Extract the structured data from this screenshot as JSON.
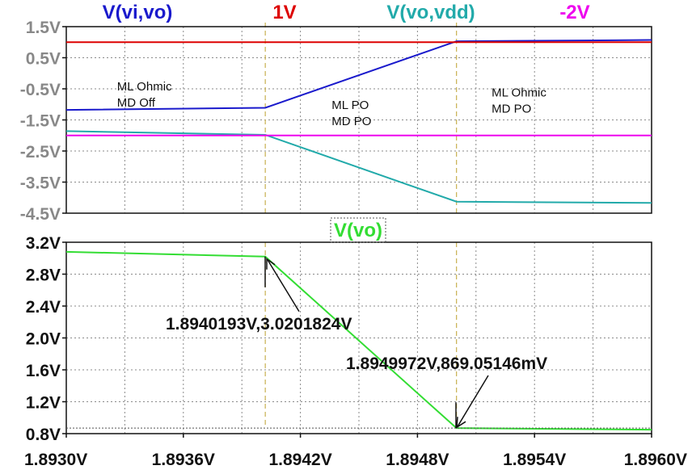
{
  "chart_data": [
    {
      "type": "line",
      "pane": "top",
      "title": "",
      "legend": [
        {
          "label": "V(vi,vo)",
          "color": "#1a1acc"
        },
        {
          "label": "1V",
          "color": "#dd0000"
        },
        {
          "label": "V(vo,vdd)",
          "color": "#22aaaa"
        },
        {
          "label": "-2V",
          "color": "#ee00ee"
        }
      ],
      "xlim": [
        1.893,
        1.896
      ],
      "ylim": [
        -4.5,
        1.5
      ],
      "yticks": [
        1.5,
        0.5,
        -0.5,
        -1.5,
        -2.5,
        -3.5,
        -4.5
      ],
      "ytick_labels": [
        "1.5V",
        "0.5V",
        "-0.5V",
        "-1.5V",
        "-2.5V",
        "-3.5V",
        "-4.5V"
      ],
      "grid": true,
      "series": [
        {
          "name": "V(vi,vo)",
          "color": "#1a1acc",
          "x": [
            1.893,
            1.89402,
            1.895,
            1.896
          ],
          "y": [
            -1.18,
            -1.11,
            1.03,
            1.07
          ]
        },
        {
          "name": "1V",
          "color": "#dd0000",
          "x": [
            1.893,
            1.896
          ],
          "y": [
            1.0,
            1.0
          ]
        },
        {
          "name": "V(vo,vdd)",
          "color": "#22aaaa",
          "x": [
            1.893,
            1.89402,
            1.895,
            1.896
          ],
          "y": [
            -1.86,
            -1.98,
            -4.13,
            -4.17
          ]
        },
        {
          "name": "-2V",
          "color": "#ee00ee",
          "x": [
            1.893,
            1.896
          ],
          "y": [
            -2.0,
            -2.0
          ]
        }
      ],
      "annotations": [
        {
          "lines": [
            "ML Ohmic",
            "MD Off"
          ],
          "x": 1.89326,
          "y": -0.55
        },
        {
          "lines": [
            "ML PO",
            "MD PO"
          ],
          "x": 1.89436,
          "y": -1.15
        },
        {
          "lines": [
            "ML Ohmic",
            "MD PO"
          ],
          "x": 1.89518,
          "y": -0.75
        }
      ]
    },
    {
      "type": "line",
      "pane": "bottom",
      "title": "V(vo)",
      "xlabel": "",
      "ylabel": "",
      "xlim": [
        1.893,
        1.896
      ],
      "ylim": [
        0.8,
        3.2
      ],
      "yticks": [
        3.2,
        2.8,
        2.4,
        2.0,
        1.6,
        1.2,
        0.8
      ],
      "ytick_labels": [
        "3.2V",
        "2.8V",
        "2.4V",
        "2.0V",
        "1.6V",
        "1.2V",
        "0.8V"
      ],
      "xticks": [
        1.893,
        1.8936,
        1.8942,
        1.8948,
        1.8954,
        1.896
      ],
      "xtick_labels": [
        "1.8930V",
        "1.8936V",
        "1.8942V",
        "1.8948V",
        "1.8954V",
        "1.8960V"
      ],
      "grid": true,
      "series": [
        {
          "name": "V(vo)",
          "color": "#33dd33",
          "x": [
            1.893,
            1.89402,
            1.895,
            1.896
          ],
          "y": [
            3.08,
            3.0201824,
            0.86905146,
            0.85
          ]
        }
      ],
      "cursors": [
        {
          "label": "1.8940193V,3.0201824V",
          "x": 1.8940193,
          "y": 3.0201824
        },
        {
          "label": "1.8949972V,869.05146mV",
          "x": 1.8949972,
          "y": 0.86905146
        }
      ]
    }
  ]
}
